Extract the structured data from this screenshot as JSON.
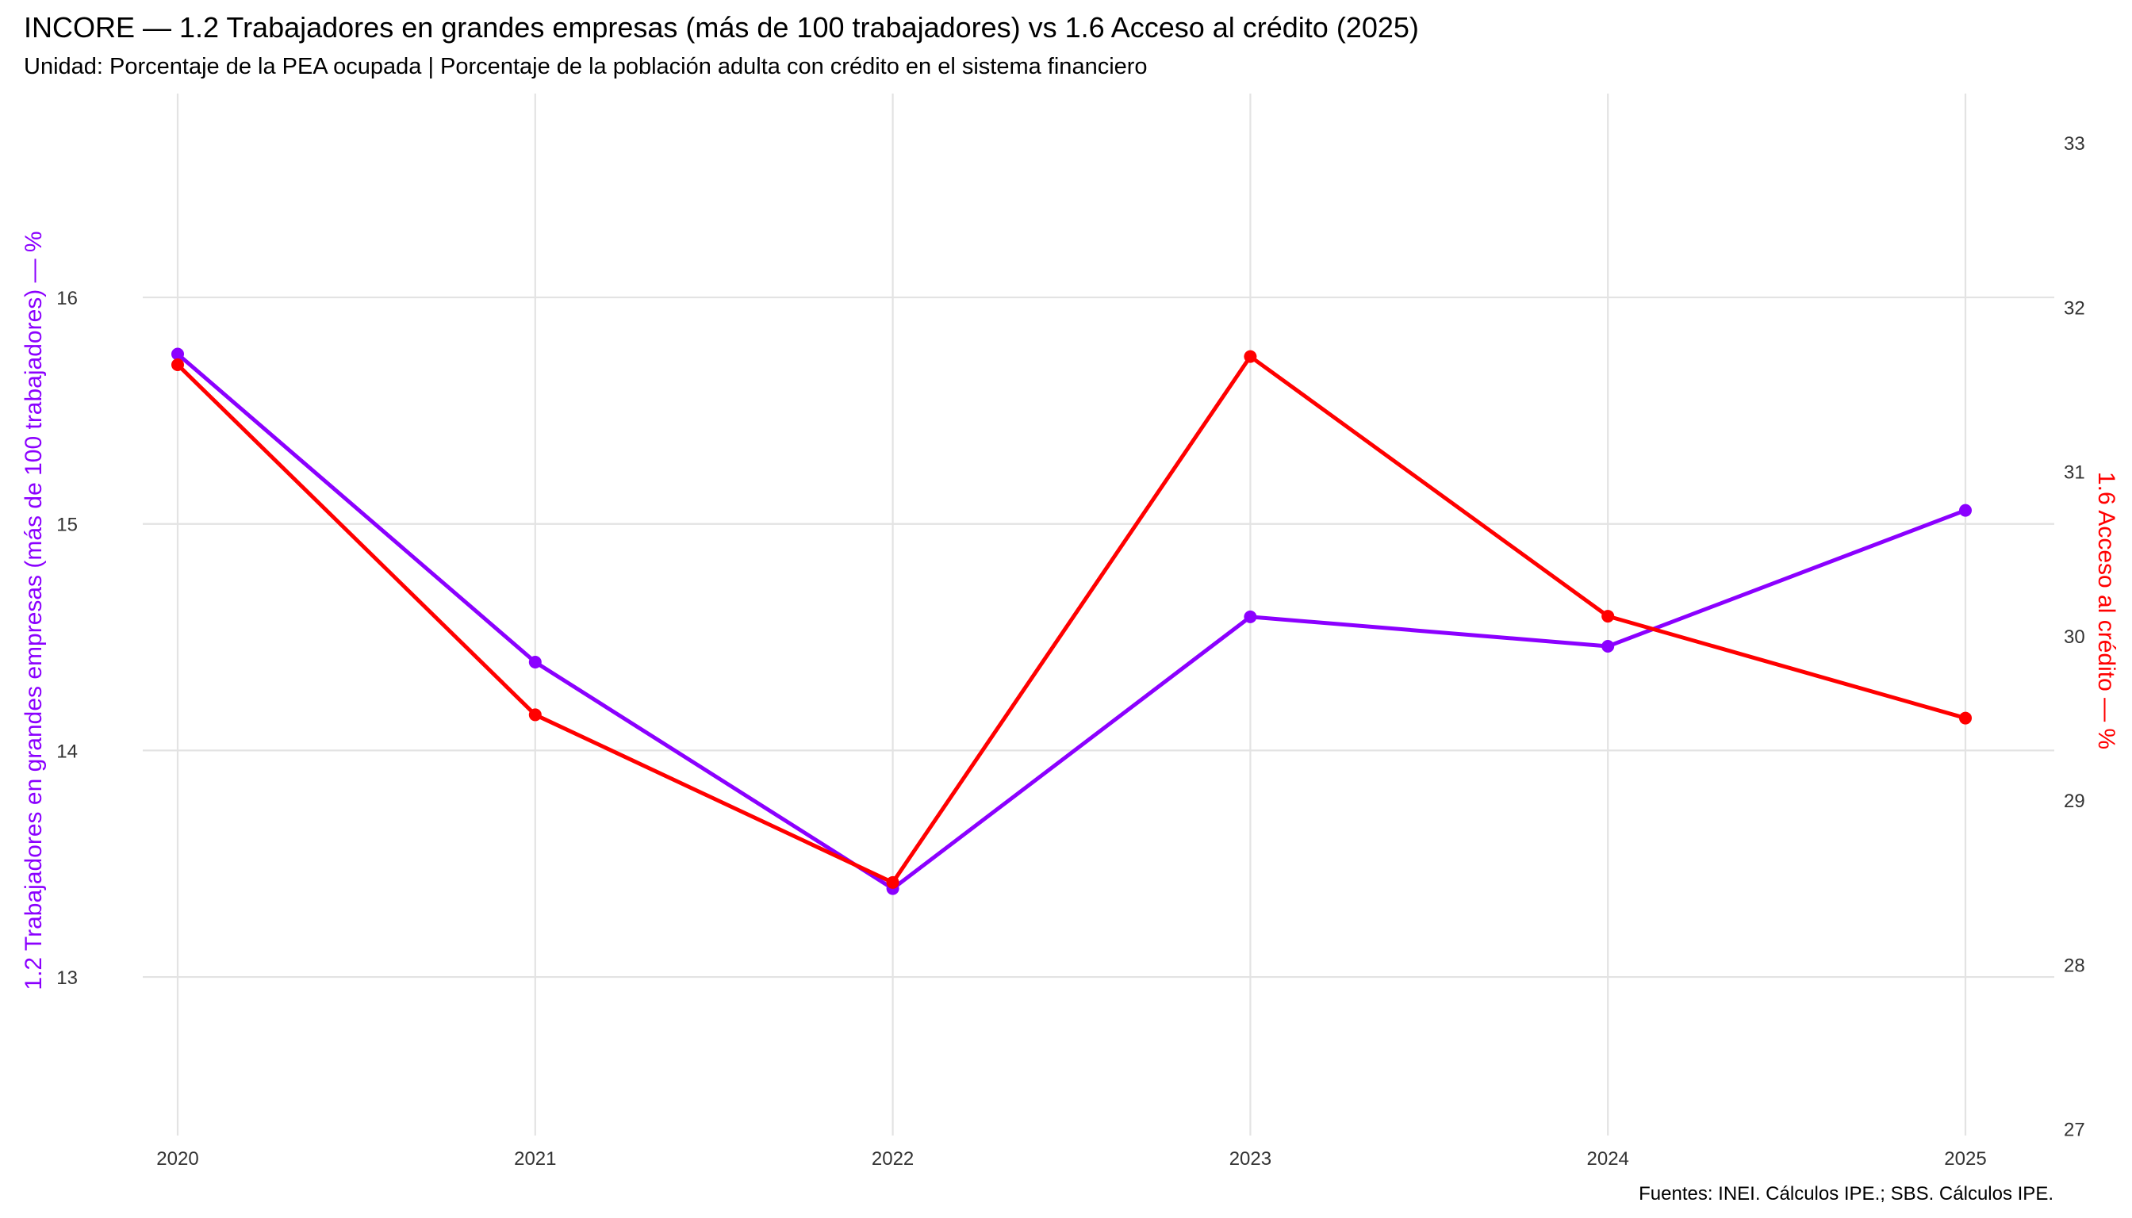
{
  "chart_data": {
    "type": "line",
    "title": "INCORE — 1.2 Trabajadores en grandes empresas (más de 100 trabajadores)  vs  1.6 Acceso al crédito (2025)",
    "subtitle": "Unidad: Porcentaje de la PEA ocupada  |  Porcentaje de la población adulta con crédito en el sistema financiero",
    "caption": "Fuentes: INEI. Cálculos IPE.; SBS. Cálculos IPE.",
    "x": [
      "2020",
      "2021",
      "2022",
      "2023",
      "2024",
      "2025"
    ],
    "y_left": {
      "label": "1.2 Trabajadores en grandes empresas (más de 100 trabajadores) — %",
      "range": [
        12.3,
        16.9
      ],
      "ticks": [
        "13",
        "14",
        "15",
        "16"
      ],
      "color": "#8B00FF"
    },
    "y_right": {
      "label": "1.6 Acceso al crédito — %",
      "range": [
        26.96,
        33.3
      ],
      "ticks": [
        "27",
        "28",
        "29",
        "30",
        "31",
        "32",
        "33"
      ],
      "color": "#FF0000"
    },
    "series": [
      {
        "axis": "left",
        "color": "#8B00FF",
        "values": [
          15.75,
          14.39,
          13.39,
          14.59,
          14.46,
          15.06
        ]
      },
      {
        "axis": "right",
        "color": "#FF0000",
        "values": [
          31.65,
          29.52,
          28.5,
          31.7,
          30.12,
          29.5
        ]
      }
    ],
    "grid": true
  }
}
